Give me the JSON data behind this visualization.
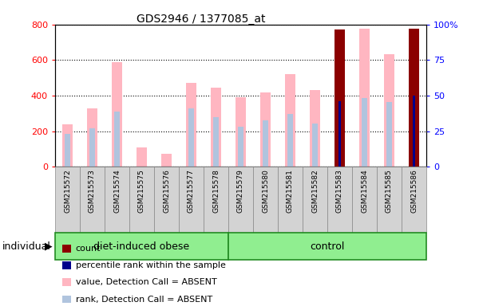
{
  "title": "GDS2946 / 1377085_at",
  "samples": [
    "GSM215572",
    "GSM215573",
    "GSM215574",
    "GSM215575",
    "GSM215576",
    "GSM215577",
    "GSM215578",
    "GSM215579",
    "GSM215580",
    "GSM215581",
    "GSM215582",
    "GSM215583",
    "GSM215584",
    "GSM215585",
    "GSM215586"
  ],
  "value_absent": [
    240,
    330,
    590,
    110,
    75,
    470,
    445,
    390,
    420,
    520,
    430,
    0,
    775,
    635,
    0
  ],
  "rank_absent": [
    185,
    215,
    310,
    0,
    0,
    330,
    280,
    225,
    260,
    295,
    245,
    0,
    385,
    365,
    0
  ],
  "count_present": [
    0,
    0,
    0,
    0,
    0,
    0,
    0,
    0,
    0,
    0,
    0,
    770,
    0,
    0,
    775
  ],
  "percentile_rank": [
    0,
    0,
    0,
    0,
    0,
    0,
    0,
    0,
    0,
    0,
    0,
    370,
    0,
    0,
    400
  ],
  "groups": [
    {
      "label": "diet-induced obese",
      "start": 0,
      "end": 7
    },
    {
      "label": "control",
      "start": 7,
      "end": 15
    }
  ],
  "ylim_left": [
    0,
    800
  ],
  "ylim_right": [
    0,
    100
  ],
  "yticks_left": [
    0,
    200,
    400,
    600,
    800
  ],
  "yticks_right": [
    0,
    25,
    50,
    75,
    100
  ],
  "color_count": "#8B0000",
  "color_percentile": "#00008B",
  "color_value_absent": "#FFB6C1",
  "color_rank_absent": "#B0C4DE",
  "group_color": "#90EE90",
  "group_border_color": "#228B22",
  "bar_width": 0.4,
  "individual_label": "individual",
  "legend_items": [
    {
      "label": "count",
      "color": "#8B0000"
    },
    {
      "label": "percentile rank within the sample",
      "color": "#00008B"
    },
    {
      "label": "value, Detection Call = ABSENT",
      "color": "#FFB6C1"
    },
    {
      "label": "rank, Detection Call = ABSENT",
      "color": "#B0C4DE"
    }
  ]
}
